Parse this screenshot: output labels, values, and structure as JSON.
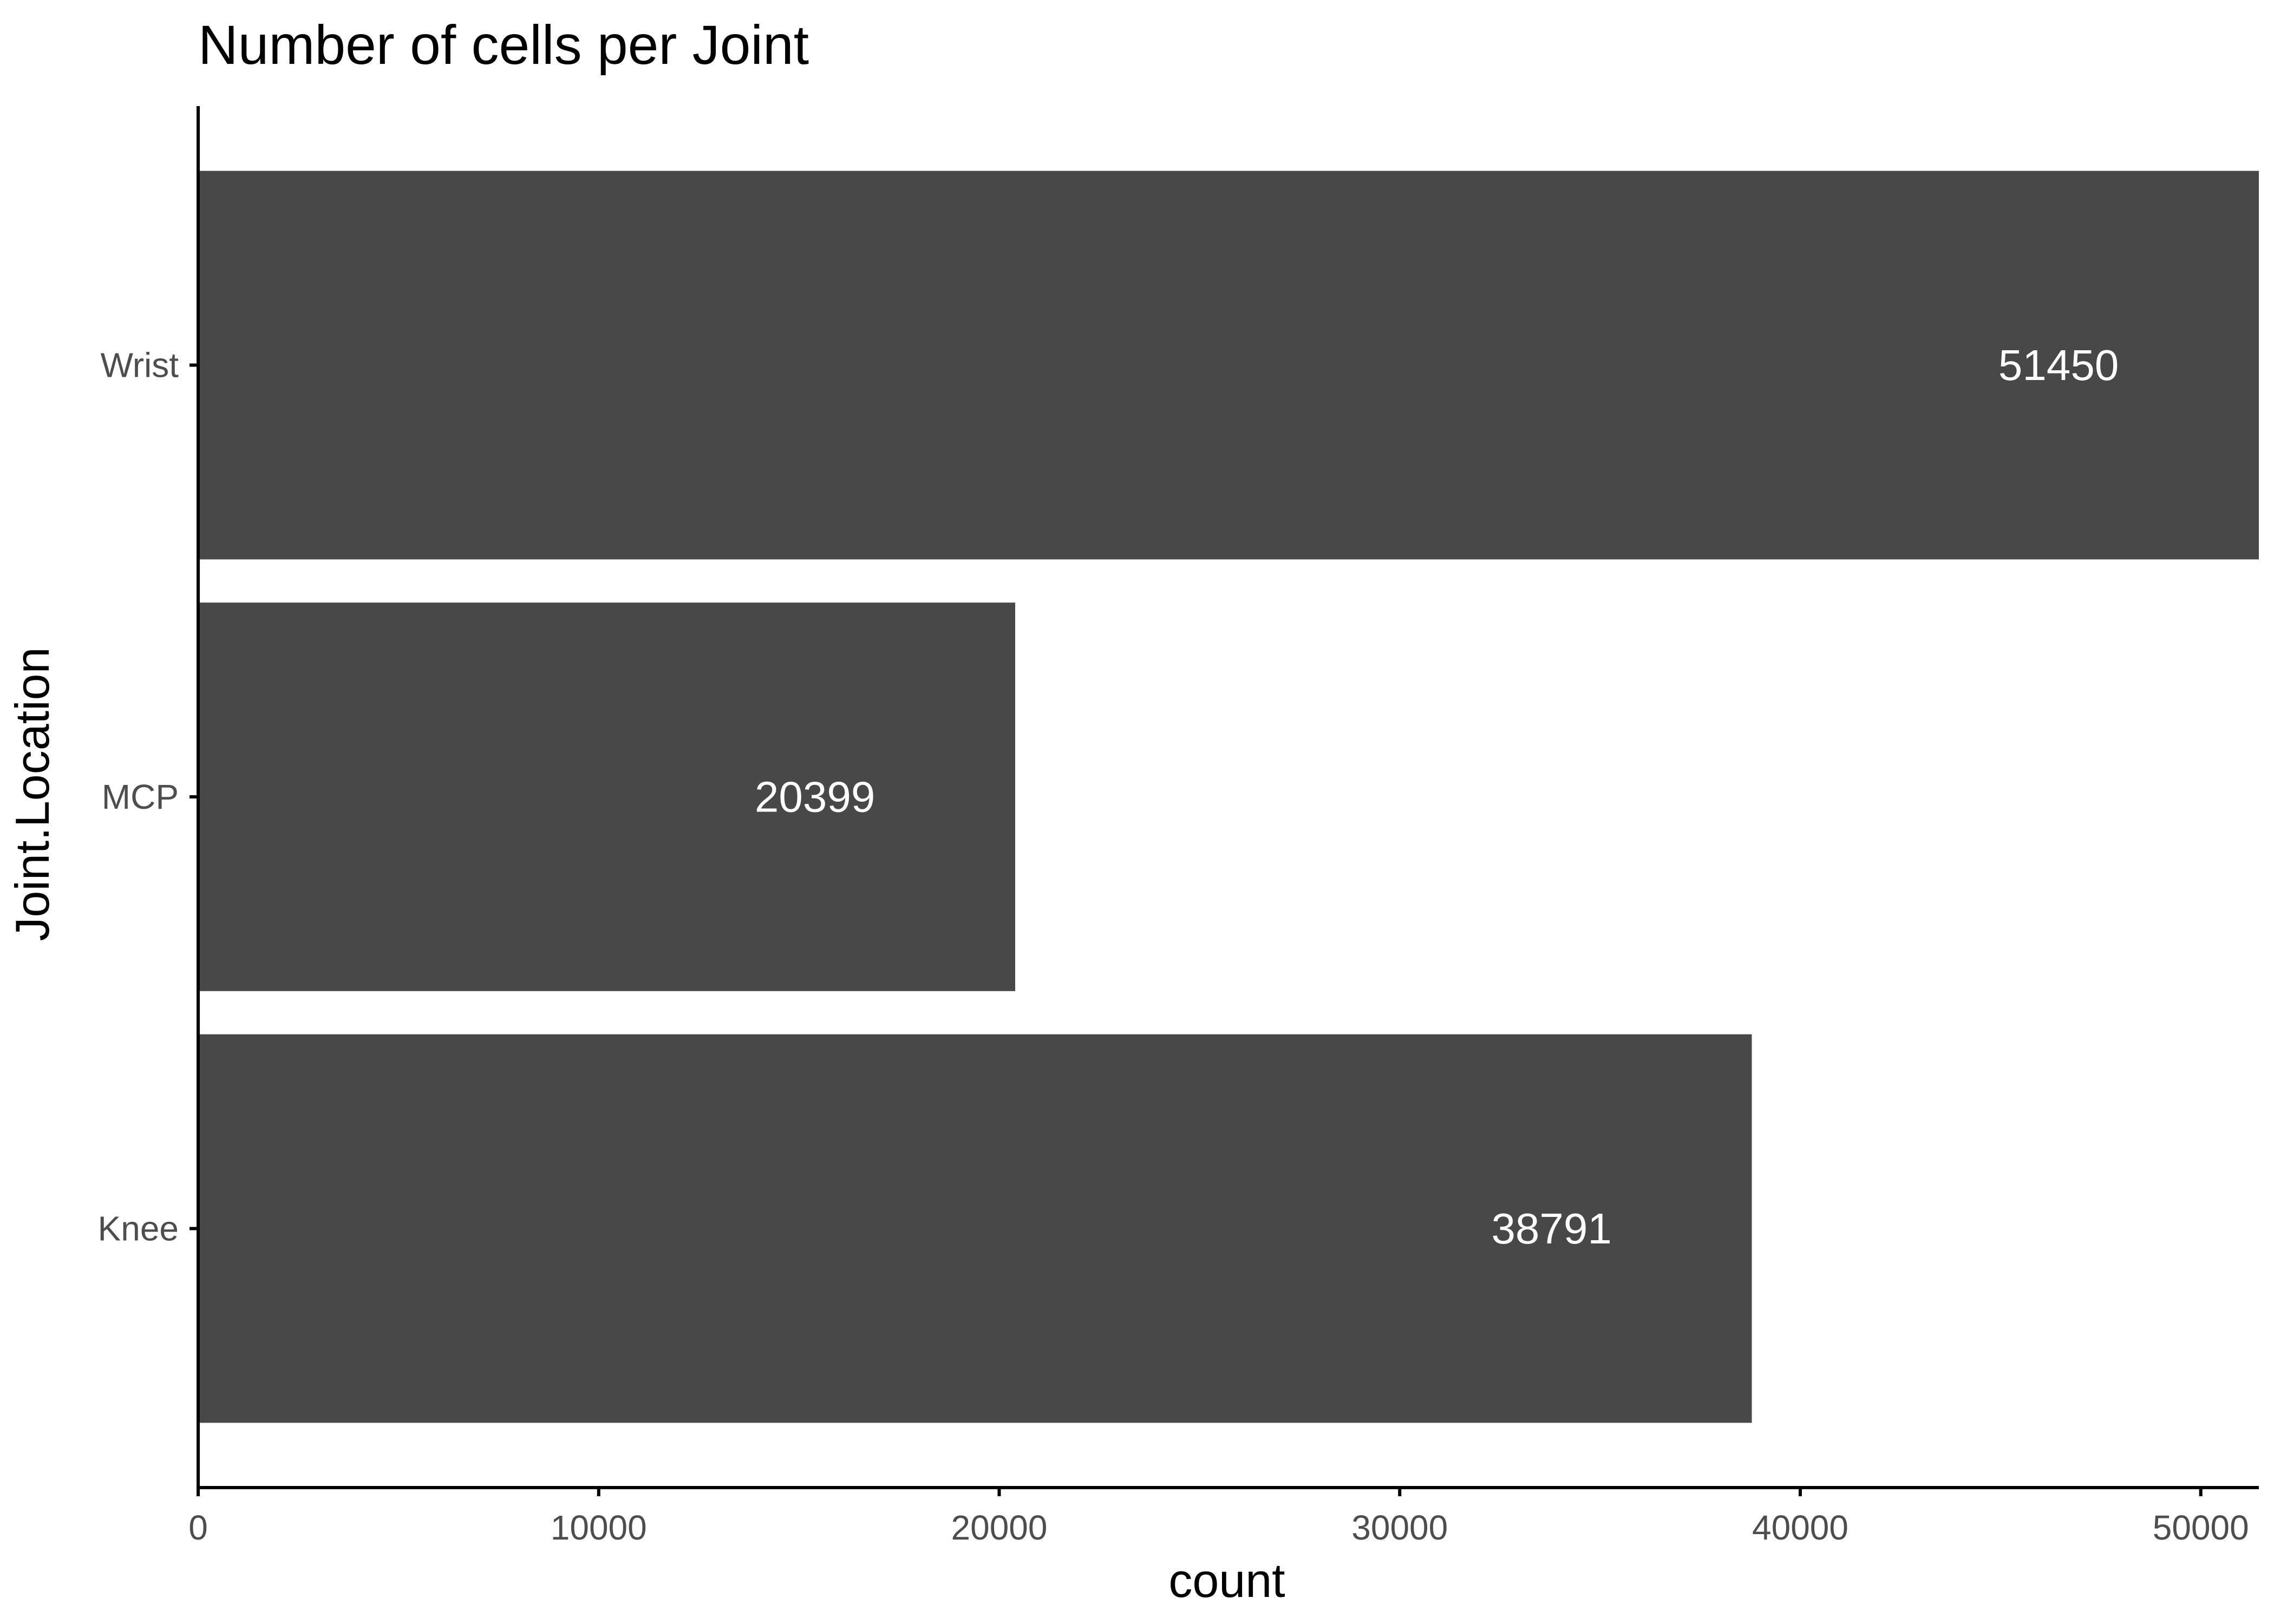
{
  "chart_data": {
    "type": "bar",
    "orientation": "horizontal",
    "title": "Number of cells per Joint",
    "xlabel": "count",
    "ylabel": "Joint.Location",
    "categories": [
      "Knee",
      "MCP",
      "Wrist"
    ],
    "values": [
      38791,
      20399,
      51450
    ],
    "data_labels": [
      "38791",
      "20399",
      "51450"
    ],
    "xlim": [
      0,
      51450
    ],
    "x_ticks": [
      0,
      10000,
      20000,
      30000,
      40000,
      50000
    ],
    "x_tick_labels": [
      "0",
      "10000",
      "20000",
      "30000",
      "40000",
      "50000"
    ],
    "grid": false,
    "legend": "none",
    "colors": {
      "bar": "#484848",
      "axis": "#000000",
      "tick_label": "#4d4d4d",
      "data_label": "#ffffff",
      "background": "#ffffff"
    }
  }
}
